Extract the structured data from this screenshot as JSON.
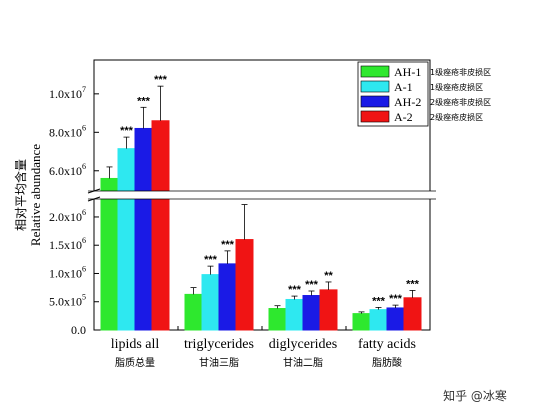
{
  "chart_data": {
    "type": "bar",
    "ylabel": "Relative abundance",
    "ylabel_cn": "相对平均含量",
    "categories": [
      {
        "label": "lipids all",
        "sub": "脂质总量"
      },
      {
        "label": "triglycerides",
        "sub": "甘油三脂"
      },
      {
        "label": "diglycerides",
        "sub": "甘油二脂"
      },
      {
        "label": "fatty acids",
        "sub": "脂肪酸"
      }
    ],
    "series": [
      {
        "name": "AH-1",
        "desc": "1级痤疮非皮损区",
        "color": "#2ee82e",
        "values": [
          5600000,
          630000,
          380000,
          290000
        ],
        "errors": [
          600000,
          120000,
          50000,
          30000
        ],
        "sig": [
          "",
          "",
          "",
          ""
        ]
      },
      {
        "name": "A-1",
        "desc": "1级痤疮皮损区",
        "color": "#2ee8f0",
        "values": [
          7150000,
          980000,
          540000,
          360000
        ],
        "errors": [
          600000,
          150000,
          60000,
          40000
        ],
        "sig": [
          "***",
          "***",
          "***",
          "***"
        ]
      },
      {
        "name": "AH-2",
        "desc": "2级痤疮非皮损区",
        "color": "#1a1ae6",
        "values": [
          8200000,
          1170000,
          610000,
          390000
        ],
        "errors": [
          1100000,
          230000,
          80000,
          50000
        ],
        "sig": [
          "***",
          "***",
          "***",
          "***"
        ]
      },
      {
        "name": "A-2",
        "desc": "2级痤疮皮损区",
        "color": "#f01414",
        "values": [
          8600000,
          1600000,
          710000,
          570000
        ],
        "errors": [
          1800000,
          620000,
          140000,
          130000
        ],
        "sig": [
          "***",
          "**",
          "**",
          "***"
        ]
      }
    ],
    "y_axis_lower": {
      "range": [
        0,
        2300000
      ],
      "ticks": [
        "0.0",
        "5.0x10^5",
        "1.0x10^6",
        "1.5x10^6",
        "2.0x10^6"
      ],
      "tick_values": [
        0,
        500000,
        1000000,
        1500000,
        2000000
      ]
    },
    "y_axis_upper": {
      "range": [
        5000000,
        11500000
      ],
      "ticks": [
        "6.0x10^6",
        "8.0x10^6",
        "1.0x10^7"
      ],
      "tick_values": [
        6000000,
        8000000,
        10000000
      ]
    },
    "broken_axis": true,
    "legend_position": "top-right"
  },
  "watermark": "知乎 @冰寒"
}
